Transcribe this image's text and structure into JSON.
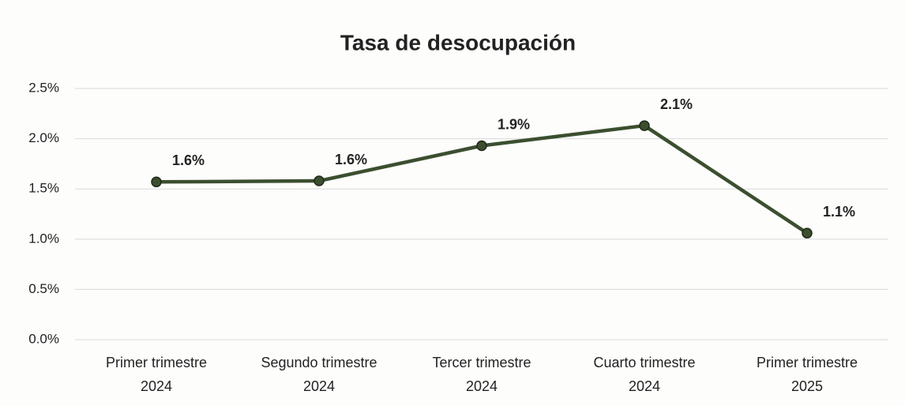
{
  "chart_data": {
    "type": "line",
    "title": "Tasa de desocupación",
    "categories": [
      "Primer  trimestre 2024",
      "Segundo trimestre 2024",
      "Tercer trimestre 2024",
      "Cuarto trimestre 2024",
      "Primer trimestre 2025"
    ],
    "series": [
      {
        "name": "Tasa de desocupación",
        "color": "#3b4f2f",
        "values": [
          1.57,
          1.58,
          1.93,
          2.13,
          1.06
        ],
        "value_labels": [
          "1.6%",
          "1.6%",
          "1.9%",
          "2.1%",
          "1.1%"
        ]
      }
    ],
    "ylim": [
      0,
      2.5
    ],
    "yticks": [
      {
        "value": 0,
        "label": "0.0%"
      },
      {
        "value": 0.5,
        "label": "0.5%"
      },
      {
        "value": 1,
        "label": "1.0%"
      },
      {
        "value": 1.5,
        "label": "1.5%"
      },
      {
        "value": 2,
        "label": "2.0%"
      },
      {
        "value": 2.5,
        "label": "2.5%"
      }
    ],
    "grid": true
  }
}
